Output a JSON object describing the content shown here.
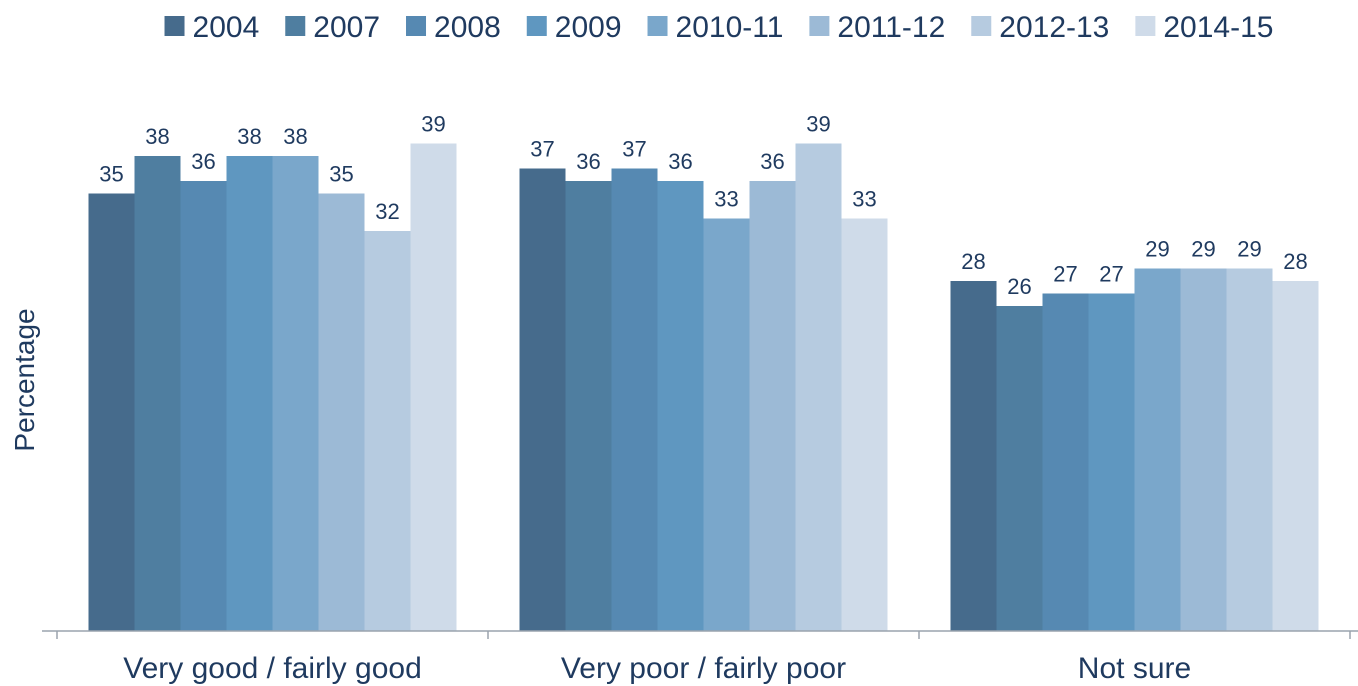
{
  "chart_data": {
    "type": "bar",
    "title": "",
    "xlabel": "",
    "ylabel": "Percentage",
    "ylim": [
      0,
      40
    ],
    "grid": false,
    "legend_position": "top",
    "categories": [
      "Very good / fairly good",
      "Very poor / fairly poor",
      "Not sure"
    ],
    "series": [
      {
        "name": "2004",
        "color": "#466b8c",
        "values": [
          35,
          37,
          28
        ]
      },
      {
        "name": "2007",
        "color": "#4f7ea0",
        "values": [
          38,
          36,
          26
        ]
      },
      {
        "name": "2008",
        "color": "#5689b2",
        "values": [
          36,
          37,
          27
        ]
      },
      {
        "name": "2009",
        "color": "#5f97c0",
        "values": [
          38,
          36,
          27
        ]
      },
      {
        "name": "2010-11",
        "color": "#7aa7cb",
        "values": [
          38,
          33,
          29
        ]
      },
      {
        "name": "2011-12",
        "color": "#9cbad6",
        "values": [
          35,
          36,
          29
        ]
      },
      {
        "name": "2012-13",
        "color": "#b6cbe0",
        "values": [
          32,
          39,
          29
        ]
      },
      {
        "name": "2014-15",
        "color": "#cfdbe9",
        "values": [
          39,
          33,
          28
        ]
      }
    ]
  }
}
